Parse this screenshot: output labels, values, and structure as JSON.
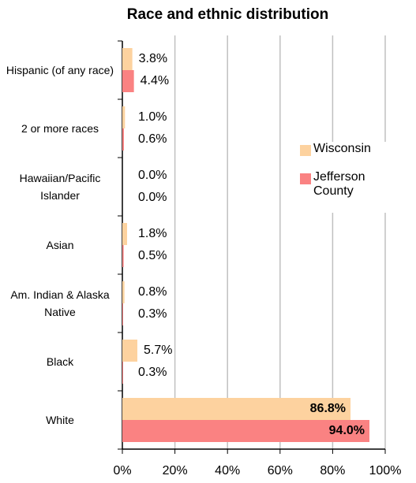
{
  "chart_data": {
    "type": "bar",
    "orientation": "horizontal",
    "title": "Race and ethnic distribution",
    "categories": [
      "Hispanic (of any race)",
      "2 or more races",
      "Hawaiian/Pacific Islander",
      "Asian",
      "Am. Indian & Alaska Native",
      "Black",
      "White"
    ],
    "series": [
      {
        "name": "Wisconsin",
        "color": "#fdd29f",
        "values": [
          3.8,
          1.0,
          0.0,
          1.8,
          0.8,
          5.7,
          86.8
        ],
        "value_labels": [
          "3.8%",
          "1.0%",
          "0.0%",
          "1.8%",
          "0.8%",
          "5.7%",
          "86.8%"
        ]
      },
      {
        "name": "Jefferson County",
        "color": "#fa8282",
        "values": [
          4.4,
          0.6,
          0.0,
          0.5,
          0.3,
          0.3,
          94.0
        ],
        "value_labels": [
          "4.4%",
          "0.6%",
          "0.0%",
          "0.5%",
          "0.3%",
          "0.3%",
          "94.0%"
        ]
      }
    ],
    "xlim": [
      0,
      100
    ],
    "xticks": [
      {
        "value": 0,
        "label": "0%"
      },
      {
        "value": 20,
        "label": "20%"
      },
      {
        "value": 40,
        "label": "40%"
      },
      {
        "value": 60,
        "label": "60%"
      },
      {
        "value": 80,
        "label": "80%"
      },
      {
        "value": 100,
        "label": "100%"
      }
    ],
    "grid": true,
    "legend": "right"
  }
}
